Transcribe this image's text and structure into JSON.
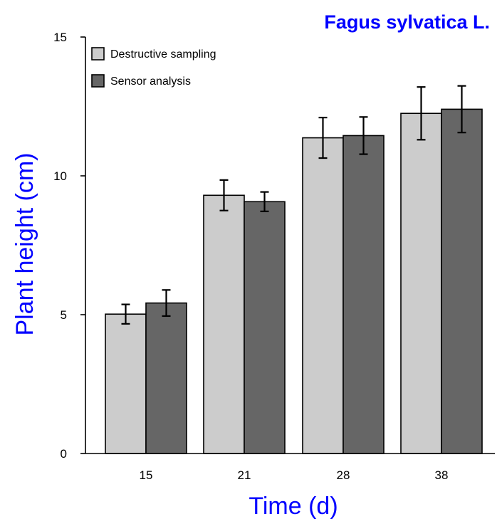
{
  "chart_data": {
    "type": "bar",
    "title": "Fagus sylvatica L.",
    "xlabel": "Time (d)",
    "ylabel": "Plant height (cm)",
    "categories": [
      "15",
      "21",
      "28",
      "38"
    ],
    "ylim": [
      0,
      15
    ],
    "yticks": [
      "0",
      "5",
      "10",
      "15"
    ],
    "series": [
      {
        "name": "Destructive sampling",
        "color": "#cccccc",
        "values": [
          5.02,
          9.3,
          11.37,
          12.25
        ],
        "errors": [
          0.35,
          0.55,
          0.73,
          0.95
        ]
      },
      {
        "name": "Sensor analysis",
        "color": "#666666",
        "values": [
          5.42,
          9.07,
          11.45,
          12.4
        ],
        "errors": [
          0.47,
          0.35,
          0.67,
          0.84
        ]
      }
    ],
    "grid": false,
    "legend_position": "top-left",
    "title_color": "#0000ff",
    "axis_title_color": "#0000ff"
  }
}
